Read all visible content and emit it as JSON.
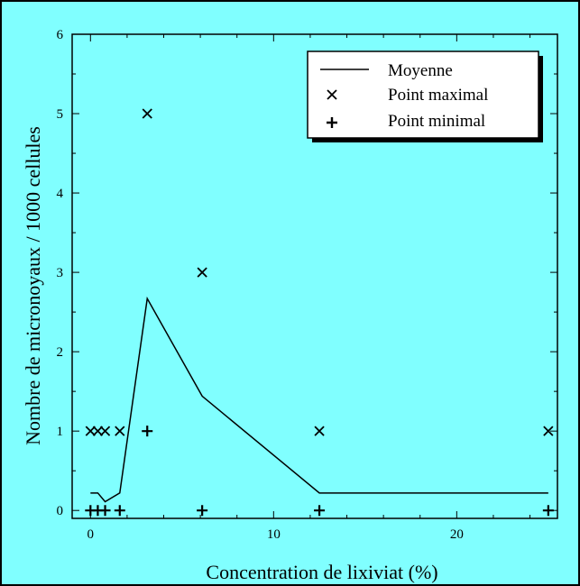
{
  "chart_data": {
    "type": "line",
    "xlabel": "Concentration de lixiviat (%)",
    "ylabel": "Nombre de micronoyaux / 1000 cellules",
    "xlim": [
      -1,
      25.5
    ],
    "ylim": [
      -0.1,
      6
    ],
    "xticks": [
      0,
      10,
      20
    ],
    "yticks": [
      0,
      1,
      2,
      3,
      4,
      5,
      6
    ],
    "grid": false,
    "legend_position": "top-right",
    "series": [
      {
        "name": "Moyenne",
        "type": "line",
        "x": [
          0,
          0.4,
          0.8,
          1.6,
          3.1,
          6.1,
          12.5,
          25
        ],
        "y": [
          0.22,
          0.22,
          0.11,
          0.22,
          2.67,
          1.44,
          0.22,
          0.22
        ]
      },
      {
        "name": "Point maximal",
        "type": "scatter",
        "marker": "x",
        "x": [
          0,
          0.4,
          0.8,
          1.6,
          3.1,
          6.1,
          12.5,
          25
        ],
        "y": [
          1,
          1,
          1,
          1,
          5,
          3,
          1,
          1
        ]
      },
      {
        "name": "Point minimal",
        "type": "scatter",
        "marker": "+",
        "x": [
          0,
          0.4,
          0.8,
          1.6,
          3.1,
          6.1,
          12.5,
          25
        ],
        "y": [
          0,
          0,
          0,
          0,
          1,
          0,
          0,
          0
        ]
      }
    ]
  },
  "colors": {
    "background": "#80FFFF",
    "ink": "#000000",
    "legend_bg": "#FFFFFF"
  }
}
